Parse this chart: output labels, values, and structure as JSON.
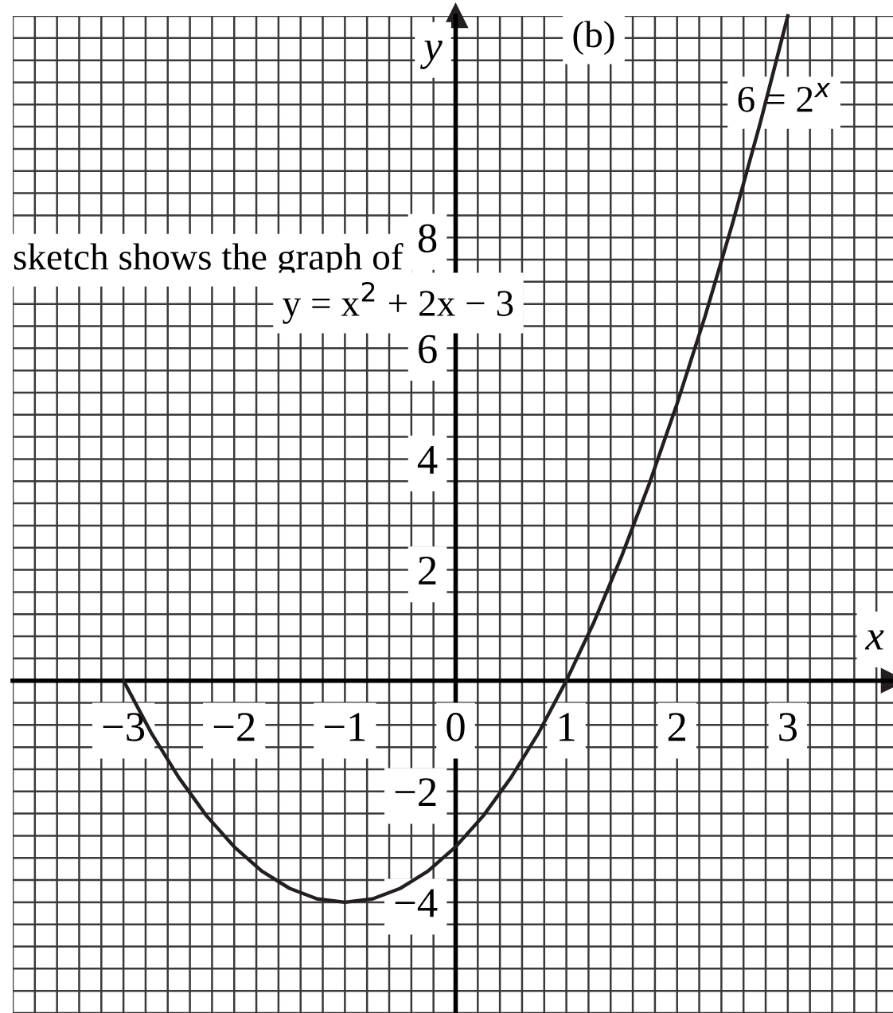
{
  "chart_data": {
    "type": "line",
    "xlabel": "x",
    "ylabel": "y",
    "x": [
      -3,
      -2.75,
      -2.5,
      -2.25,
      -2,
      -1.75,
      -1.5,
      -1.25,
      -1,
      -0.75,
      -0.5,
      -0.25,
      0,
      0.25,
      0.5,
      0.75,
      1,
      1.25,
      1.5,
      1.75,
      2,
      2.25,
      2.5,
      2.75,
      3
    ],
    "series": [
      {
        "color": "#231f20",
        "values": [
          0,
          -0.94,
          -1.75,
          -2.44,
          -3,
          -3.44,
          -3.75,
          -3.94,
          -4,
          -3.94,
          -3.75,
          -3.44,
          -3,
          -2.44,
          -1.75,
          -0.94,
          0,
          1.06,
          2.25,
          3.56,
          5,
          6.56,
          8.25,
          10.06,
          12
        ]
      }
    ],
    "xlim": [
      -4,
      3.95
    ],
    "ylim": [
      -6,
      12
    ],
    "xticks": [
      -3,
      -2,
      -1,
      0,
      1,
      2,
      3
    ],
    "yticks": [
      -4,
      -2,
      2,
      4,
      6,
      8
    ],
    "grid": true,
    "marker": "none",
    "line_style": "solid",
    "annotations": [
      "(b)",
      "6 = 2$^{x}$",
      "sketch shows the graph of",
      "y = x$^{2}$ + 2x − 3"
    ]
  }
}
